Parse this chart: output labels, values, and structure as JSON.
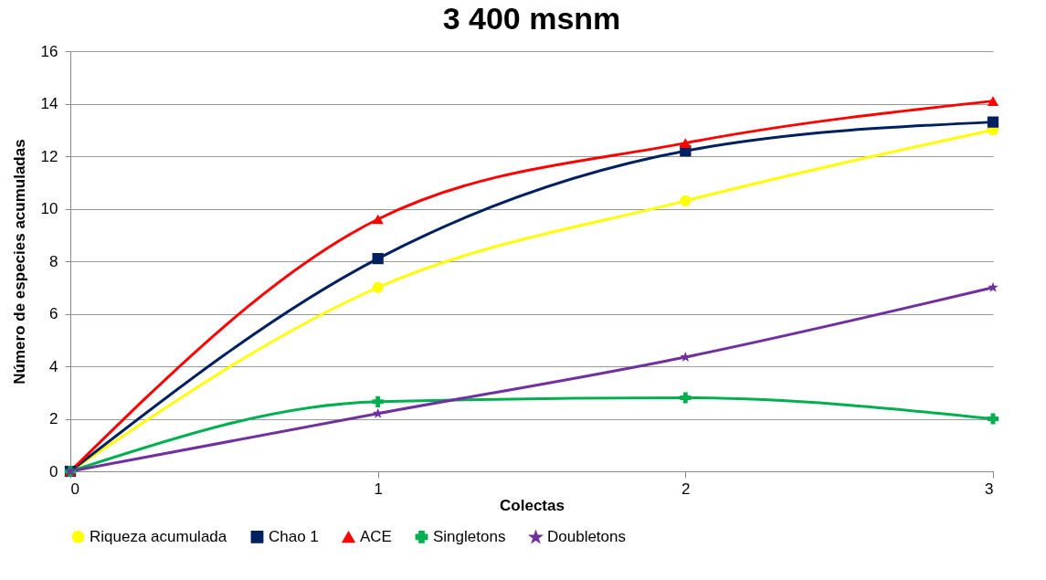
{
  "chart_data": {
    "type": "line",
    "title": "3 400 msnm",
    "xlabel": "Colectas",
    "ylabel": "Número de especies acumuladas",
    "x": [
      0,
      1,
      2,
      3
    ],
    "xlim": [
      0,
      3
    ],
    "xticks": [
      0,
      1,
      2,
      3
    ],
    "ylim": [
      0,
      16
    ],
    "yticks": [
      0,
      2,
      4,
      6,
      8,
      10,
      12,
      14,
      16
    ],
    "grid": "y",
    "legend": "bottom",
    "series": [
      {
        "name": "Riqueza acumulada",
        "color": "#ffff00",
        "marker": "circle",
        "values": [
          0,
          7.0,
          10.3,
          13.0
        ]
      },
      {
        "name": "Chao 1",
        "color": "#002060",
        "marker": "square",
        "values": [
          0,
          8.1,
          12.2,
          13.3
        ]
      },
      {
        "name": "ACE",
        "color": "#ff0000",
        "marker": "triangle",
        "values": [
          0,
          9.6,
          12.5,
          14.1
        ]
      },
      {
        "name": "Singletons",
        "color": "#00b050",
        "marker": "cross",
        "values": [
          0,
          2.65,
          2.8,
          2.0
        ]
      },
      {
        "name": "Doubletons",
        "color": "#7030a0",
        "marker": "star",
        "values": [
          0,
          2.2,
          4.35,
          7.0
        ]
      }
    ]
  }
}
